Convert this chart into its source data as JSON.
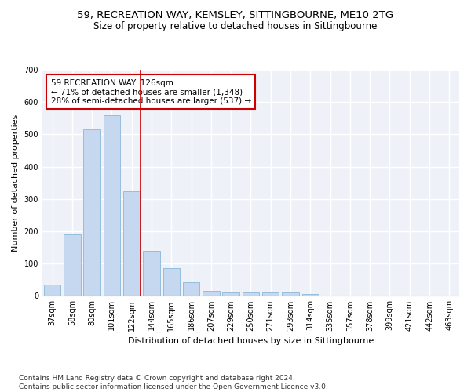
{
  "title1": "59, RECREATION WAY, KEMSLEY, SITTINGBOURNE, ME10 2TG",
  "title2": "Size of property relative to detached houses in Sittingbourne",
  "xlabel": "Distribution of detached houses by size in Sittingbourne",
  "ylabel": "Number of detached properties",
  "categories": [
    "37sqm",
    "58sqm",
    "80sqm",
    "101sqm",
    "122sqm",
    "144sqm",
    "165sqm",
    "186sqm",
    "207sqm",
    "229sqm",
    "250sqm",
    "271sqm",
    "293sqm",
    "314sqm",
    "335sqm",
    "357sqm",
    "378sqm",
    "399sqm",
    "421sqm",
    "442sqm",
    "463sqm"
  ],
  "values": [
    35,
    190,
    515,
    560,
    325,
    140,
    85,
    42,
    15,
    10,
    10,
    10,
    10,
    5,
    0,
    0,
    0,
    0,
    0,
    0,
    0
  ],
  "bar_color": "#c5d8f0",
  "bar_edge_color": "#7baed4",
  "highlight_line_color": "#cc0000",
  "annotation_text": "59 RECREATION WAY: 126sqm\n← 71% of detached houses are smaller (1,348)\n28% of semi-detached houses are larger (537) →",
  "annotation_box_color": "#ffffff",
  "annotation_box_edge": "#cc0000",
  "ylim": [
    0,
    700
  ],
  "yticks": [
    0,
    100,
    200,
    300,
    400,
    500,
    600,
    700
  ],
  "footer": "Contains HM Land Registry data © Crown copyright and database right 2024.\nContains public sector information licensed under the Open Government Licence v3.0.",
  "bg_color": "#eef2f8",
  "grid_color": "#ffffff",
  "title1_fontsize": 9.5,
  "title2_fontsize": 8.5,
  "xlabel_fontsize": 8,
  "ylabel_fontsize": 8,
  "tick_fontsize": 7,
  "annotation_fontsize": 7.5,
  "footer_fontsize": 6.5
}
